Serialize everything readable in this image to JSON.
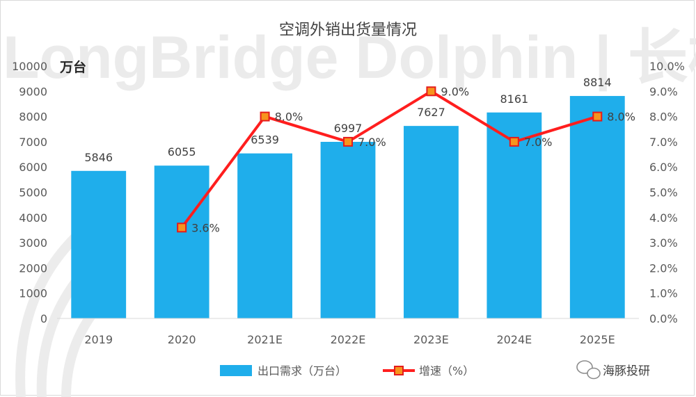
{
  "watermark": {
    "text": "LongBridge Dolphin | 长桥海豚投研",
    "brand": "海豚投研"
  },
  "colors": {
    "bar": "#1FAEEB",
    "line": "#FF1E1E",
    "marker_fill": "#F7941D",
    "marker_stroke": "#E41B1B",
    "axis_text": "#595959",
    "title_text": "#404040",
    "grid": "#D9D9D9"
  },
  "chart_data": {
    "type": "bar",
    "title": "空调外销出货量情况",
    "ylabel": "万台",
    "categories": [
      "2019",
      "2020",
      "2021E",
      "2022E",
      "2023E",
      "2024E",
      "2025E"
    ],
    "ylim": [
      0,
      10000
    ],
    "yticks": [
      "0",
      "1000",
      "2000",
      "3000",
      "4000",
      "5000",
      "6000",
      "7000",
      "8000",
      "9000",
      "10000"
    ],
    "y2lim": [
      0,
      10
    ],
    "y2ticks": [
      "0.0%",
      "1.0%",
      "2.0%",
      "3.0%",
      "4.0%",
      "5.0%",
      "6.0%",
      "7.0%",
      "8.0%",
      "9.0%",
      "10.0%"
    ],
    "series": [
      {
        "name": "出口需求（万台）",
        "kind": "bar",
        "axis": "left",
        "values": [
          5846,
          6055,
          6539,
          6997,
          7627,
          8161,
          8814
        ],
        "labels": [
          "5846",
          "6055",
          "6539",
          "6997",
          "7627",
          "8161",
          "8814"
        ]
      },
      {
        "name": "增速（%）",
        "kind": "line",
        "axis": "right",
        "values": [
          null,
          3.6,
          8.0,
          7.0,
          9.0,
          7.0,
          8.0
        ],
        "labels": [
          "",
          "3.6%",
          "8.0%",
          "7.0%",
          "9.0%",
          "7.0%",
          "8.0%"
        ]
      }
    ],
    "legend": "bottom",
    "grid": false
  }
}
